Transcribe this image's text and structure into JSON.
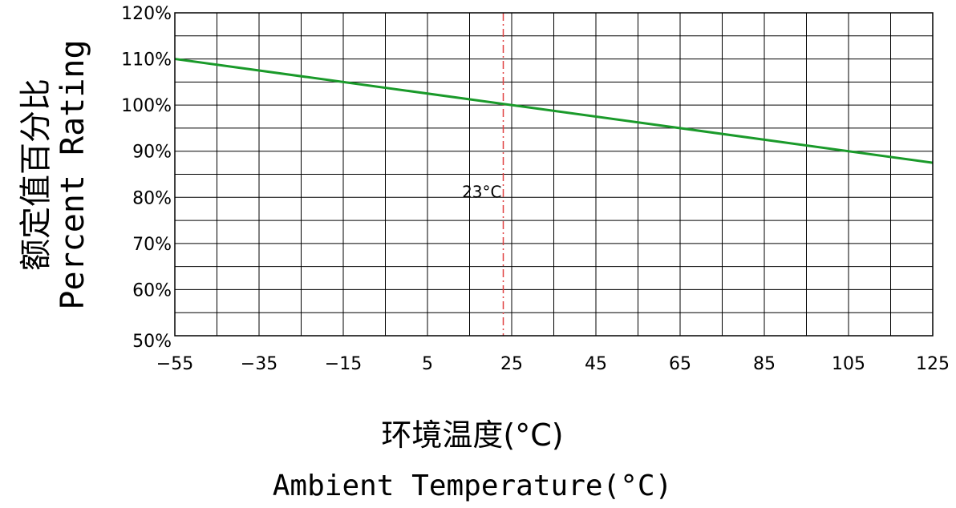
{
  "chart_data": {
    "type": "line",
    "title": "",
    "xlabel_cn": "环境温度(°C)",
    "xlabel_en": "Ambient Temperature(°C)",
    "ylabel_cn": "额定值百分比",
    "ylabel_en": "Percent Rating",
    "x_ticks": [
      -55,
      -35,
      -15,
      5,
      25,
      45,
      65,
      85,
      105,
      125
    ],
    "x_tick_labels": [
      "−55",
      "−35",
      "−15",
      "5",
      "25",
      "45",
      "65",
      "85",
      "105",
      "125"
    ],
    "y_ticks": [
      50,
      60,
      70,
      80,
      90,
      100,
      110,
      120
    ],
    "y_tick_labels": [
      "50%",
      "60%",
      "70%",
      "80%",
      "90%",
      "100%",
      "110%",
      "120%"
    ],
    "xlim": [
      -55,
      125
    ],
    "ylim": [
      50,
      120
    ],
    "grid": true,
    "grid_x_step": 10,
    "grid_y_step": 5,
    "series": [
      {
        "color": "#1a9a2a",
        "x": [
          -55,
          25,
          125
        ],
        "y": [
          110,
          100,
          87.5
        ]
      }
    ],
    "reference_line": {
      "x": 23,
      "label": "23°C",
      "color": "#e04040",
      "style": "dash-dot"
    }
  }
}
